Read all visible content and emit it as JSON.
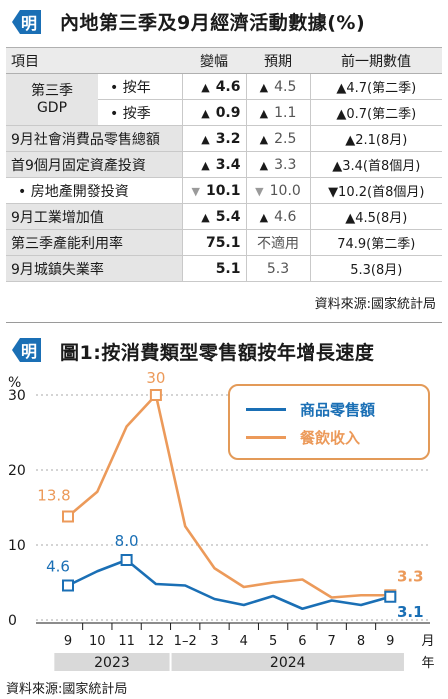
{
  "section1": {
    "title": "內地第三季及9月經濟活動數據(%)",
    "columns": [
      "項目",
      "變幅",
      "預期",
      "前一期數值"
    ],
    "gdp_label": "第三季\nGDP",
    "rows": [
      {
        "label": "• 按年",
        "change_arrow": "▲",
        "change": "4.6",
        "expected_arrow": "▲",
        "expected": "4.5",
        "prev": "▲4.7(第二季)"
      },
      {
        "label": "• 按季",
        "change_arrow": "▲",
        "change": "0.9",
        "expected_arrow": "▲",
        "expected": "1.1",
        "prev": "▲0.7(第二季)"
      },
      {
        "label": "9月社會消費品零售總額",
        "change_arrow": "▲",
        "change": "3.2",
        "expected_arrow": "▲",
        "expected": "2.5",
        "prev": "▲2.1(8月)"
      },
      {
        "label": "首9個月固定資產投資",
        "change_arrow": "▲",
        "change": "3.4",
        "expected_arrow": "▲",
        "expected": "3.3",
        "prev": "▲3.4(首8個月)"
      },
      {
        "label": "• 房地產開發投資",
        "change_arrow": "▼",
        "change": "10.1",
        "expected_arrow": "▼",
        "expected": "10.0",
        "prev": "▼10.2(首8個月)"
      },
      {
        "label": "9月工業增加值",
        "change_arrow": "▲",
        "change": "5.4",
        "expected_arrow": "▲",
        "expected": "4.6",
        "prev": "▲4.5(8月)"
      },
      {
        "label": "第三季產能利用率",
        "change_arrow": "",
        "change": "75.1",
        "expected_arrow": "",
        "expected": "不適用",
        "prev": "74.9(第二季)"
      },
      {
        "label": "9月城鎮失業率",
        "change_arrow": "",
        "change": "5.1",
        "expected_arrow": "",
        "expected": "5.3",
        "prev": "5.3(8月)"
      }
    ],
    "source": "資料來源:國家統計局"
  },
  "section2": {
    "title": "圖1:按消費類型零售額按年增長速度",
    "source": "資料來源:國家統計局"
  },
  "colors": {
    "blue": "#1a6fb5",
    "orange": "#ec9a5a",
    "logo": "#1a6fb5"
  },
  "chart_data": {
    "type": "line",
    "ylabel": "%",
    "xlabel": "月",
    "year_label": "年",
    "ylim": [
      0,
      30
    ],
    "yticks": [
      0,
      10,
      20,
      30
    ],
    "categories": [
      "9",
      "10",
      "11",
      "12",
      "1–2",
      "3",
      "4",
      "5",
      "6",
      "7",
      "8",
      "9"
    ],
    "years": [
      {
        "label": "2023",
        "from": 0,
        "to": 3
      },
      {
        "label": "2024",
        "from": 4,
        "to": 11
      }
    ],
    "series": [
      {
        "name": "商品零售額",
        "color": "#1a6fb5",
        "values": [
          4.6,
          6.5,
          8.0,
          4.8,
          4.6,
          2.8,
          2.0,
          3.2,
          1.5,
          2.6,
          2.0,
          3.1
        ],
        "labels": {
          "0": "4.6",
          "2": "8.0",
          "11": "3.1"
        }
      },
      {
        "name": "餐飲收入",
        "color": "#ec9a5a",
        "values": [
          13.8,
          17.1,
          25.8,
          30.0,
          12.5,
          6.9,
          4.4,
          5.0,
          5.4,
          3.0,
          3.3,
          3.3
        ],
        "labels": {
          "0": "13.8",
          "3": "30",
          "11": "3.3"
        }
      }
    ],
    "legend_position": "top-right"
  }
}
